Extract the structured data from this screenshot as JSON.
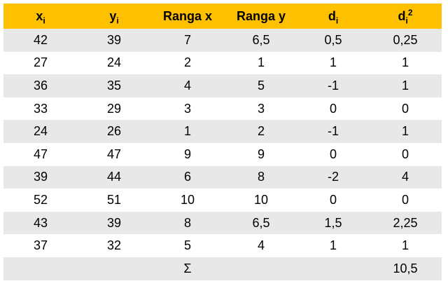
{
  "header": {
    "x": {
      "main": "x",
      "sub": "i"
    },
    "y": {
      "main": "y",
      "sub": "i"
    },
    "rank_x": "Ranga x",
    "rank_y": "Ranga y",
    "d": {
      "main": "d",
      "sub": "i"
    },
    "d2": {
      "main": "d",
      "sub": "i",
      "sup": "2"
    }
  },
  "rows": [
    [
      "42",
      "39",
      "7",
      "6,5",
      "0,5",
      "0,25"
    ],
    [
      "27",
      "24",
      "2",
      "1",
      "1",
      "1"
    ],
    [
      "36",
      "35",
      "4",
      "5",
      "-1",
      "1"
    ],
    [
      "33",
      "29",
      "3",
      "3",
      "0",
      "0"
    ],
    [
      "24",
      "26",
      "1",
      "2",
      "-1",
      "1"
    ],
    [
      "47",
      "47",
      "9",
      "9",
      "0",
      "0"
    ],
    [
      "39",
      "44",
      "6",
      "8",
      "-2",
      "4"
    ],
    [
      "52",
      "51",
      "10",
      "10",
      "0",
      "0"
    ],
    [
      "43",
      "39",
      "8",
      "6,5",
      "1,5",
      "2,25"
    ],
    [
      "37",
      "32",
      "5",
      "4",
      "1",
      "1"
    ]
  ],
  "sum_row": {
    "symbol": "Σ",
    "total": "10,5"
  },
  "colors": {
    "header_bg": "#ffc000",
    "stripe_bg": "#e8e8e8"
  }
}
